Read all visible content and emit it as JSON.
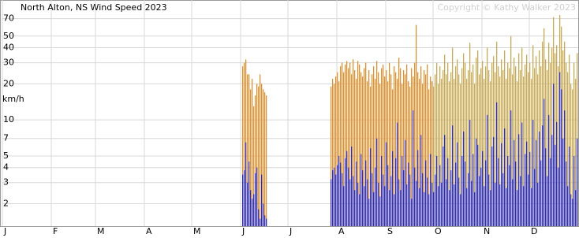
{
  "chart_data": {
    "type": "bar",
    "title": "North Alton, NS Wind Speed 2023",
    "copyright": "Copyright © Kathy Walker 2023",
    "y_label": "km/h",
    "log_scale": true,
    "grid": true,
    "xlim": [
      0,
      365
    ],
    "ylim": [
      1.3,
      100
    ],
    "xticks": [
      {
        "value": 0,
        "label": "J"
      },
      {
        "value": 31,
        "label": "F"
      },
      {
        "value": 59,
        "label": "M"
      },
      {
        "value": 90,
        "label": "A"
      },
      {
        "value": 120,
        "label": "M"
      },
      {
        "value": 151,
        "label": "J"
      },
      {
        "value": 181,
        "label": "J"
      },
      {
        "value": 212,
        "label": "A"
      },
      {
        "value": 243,
        "label": "S"
      },
      {
        "value": 273,
        "label": "O"
      },
      {
        "value": 304,
        "label": "N"
      },
      {
        "value": 334,
        "label": "D"
      }
    ],
    "yticks": [
      2,
      3,
      4,
      5,
      7,
      10,
      20,
      30,
      40,
      50,
      70
    ],
    "series": [
      {
        "color": "#e0902e",
        "x": [
          152,
          153,
          154,
          155,
          156,
          157,
          158,
          159,
          160,
          161,
          162,
          163,
          164,
          165,
          166,
          167,
          208,
          209,
          210,
          211,
          212,
          213,
          214,
          215,
          216,
          217,
          218,
          219,
          220,
          221,
          222,
          223,
          224,
          225,
          226,
          227,
          228,
          229,
          230,
          231,
          232,
          233,
          234,
          235,
          236,
          237,
          238,
          239,
          240,
          241,
          242,
          243,
          244,
          245,
          246,
          247,
          248,
          249,
          250,
          251,
          252,
          253,
          254,
          255,
          256,
          257,
          258,
          259,
          260,
          261,
          262,
          263,
          264,
          265,
          266,
          267,
          268,
          269,
          270,
          271,
          272
        ],
        "values": [
          28,
          30,
          32,
          24,
          24,
          18,
          22,
          13,
          16,
          20,
          19,
          24,
          20,
          18,
          17,
          16,
          19,
          22,
          20,
          23,
          25,
          21,
          28,
          30,
          25,
          29,
          31,
          27,
          30,
          24,
          32,
          26,
          22,
          31,
          29,
          25,
          23,
          27,
          30,
          21,
          26,
          19,
          24,
          28,
          22,
          31,
          25,
          20,
          27,
          29,
          23,
          26,
          21,
          30,
          24,
          18,
          28,
          25,
          22,
          33,
          27,
          20,
          26,
          24,
          29,
          21,
          19,
          27,
          23,
          30,
          62,
          25,
          22,
          28,
          20,
          26,
          24,
          29,
          18,
          23,
          21
        ]
      },
      {
        "color": "#c9ab55",
        "x": [
          273,
          274,
          275,
          276,
          277,
          278,
          279,
          280,
          281,
          282,
          283,
          284,
          285,
          286,
          287,
          288,
          289,
          290,
          291,
          292,
          293,
          294,
          295,
          296,
          297,
          298,
          299,
          300,
          301,
          302,
          303,
          304,
          305,
          306,
          307,
          308,
          309,
          310,
          311,
          312,
          313,
          314,
          315,
          316,
          317,
          318,
          319,
          320,
          321,
          322,
          323,
          324,
          325,
          326,
          327,
          328,
          329,
          330,
          331,
          332,
          333,
          334,
          335,
          336,
          337,
          338,
          339,
          340,
          341,
          342,
          343,
          344,
          345,
          346,
          347,
          348,
          349,
          350,
          351,
          352,
          353,
          354,
          355,
          356,
          357,
          358,
          359,
          360,
          361,
          362,
          363,
          364
        ],
        "values": [
          19,
          24,
          30,
          20,
          28,
          22,
          26,
          35,
          24,
          30,
          21,
          25,
          40,
          22,
          28,
          32,
          24,
          20,
          27,
          36,
          30,
          22,
          26,
          44,
          25,
          29,
          20,
          33,
          38,
          24,
          27,
          31,
          22,
          28,
          40,
          26,
          21,
          30,
          34,
          25,
          45,
          28,
          23,
          32,
          26,
          38,
          22,
          30,
          27,
          50,
          24,
          33,
          28,
          21,
          36,
          26,
          40,
          23,
          29,
          35,
          25,
          30,
          22,
          42,
          27,
          34,
          24,
          38,
          28,
          45,
          58,
          32,
          26,
          44,
          30,
          40,
          72,
          36,
          42,
          28,
          75,
          60,
          38,
          45,
          30,
          25,
          35,
          20,
          18,
          30,
          22,
          36
        ]
      },
      {
        "color": "#2b2bc0",
        "x": [
          152,
          153,
          154,
          155,
          156,
          157,
          158,
          159,
          160,
          161,
          162,
          163,
          164,
          165,
          166,
          167,
          208,
          209,
          210,
          211,
          212,
          213,
          214,
          215,
          216,
          217,
          218,
          219,
          220,
          221,
          222,
          223,
          224,
          225,
          226,
          227,
          228,
          229,
          230,
          231,
          232,
          233,
          234,
          235,
          236,
          237,
          238,
          239,
          240,
          241,
          242,
          243,
          244,
          245,
          246,
          247,
          248,
          249,
          250,
          251,
          252,
          253,
          254,
          255,
          256,
          257,
          258,
          259,
          260,
          261,
          262,
          263,
          264,
          265,
          266,
          267,
          268,
          269,
          270,
          271,
          272,
          273,
          274,
          275,
          276,
          277,
          278,
          279,
          280,
          281,
          282,
          283,
          284,
          285,
          286,
          287,
          288,
          289,
          290,
          291,
          292,
          293,
          294,
          295,
          296,
          297,
          298,
          299,
          300,
          301,
          302,
          303,
          304,
          305,
          306,
          307,
          308,
          309,
          310,
          311,
          312,
          313,
          314,
          315,
          316,
          317,
          318,
          319,
          320,
          321,
          322,
          323,
          324,
          325,
          326,
          327,
          328,
          329,
          330,
          331,
          332,
          333,
          334,
          335,
          336,
          337,
          338,
          339,
          340,
          341,
          342,
          343,
          344,
          345,
          346,
          347,
          348,
          349,
          350,
          351,
          352,
          353,
          354,
          355,
          356,
          357,
          358,
          359,
          360,
          361,
          362,
          363,
          364
        ],
        "values": [
          3.5,
          3.8,
          6.5,
          3.0,
          4.5,
          2.6,
          2.2,
          2.4,
          3.6,
          4.0,
          1.8,
          1.5,
          3.5,
          2.0,
          1.6,
          1.5,
          3.2,
          3.8,
          4.0,
          3.5,
          4.2,
          5.0,
          4.4,
          3.6,
          2.8,
          4.8,
          5.5,
          4.0,
          3.2,
          6.0,
          3.4,
          2.6,
          4.5,
          3.0,
          2.4,
          5.2,
          3.8,
          2.8,
          4.6,
          3.2,
          2.2,
          5.8,
          3.6,
          2.5,
          4.0,
          7.0,
          3.0,
          2.3,
          5.0,
          3.5,
          2.8,
          6.5,
          4.2,
          2.6,
          3.4,
          5.5,
          2.4,
          4.8,
          9.5,
          3.2,
          2.6,
          5.0,
          3.8,
          6.8,
          2.9,
          4.4,
          3.5,
          2.2,
          12,
          4.0,
          3.1,
          5.6,
          2.7,
          7.5,
          3.6,
          2.5,
          4.6,
          3.3,
          2.4,
          5.2,
          3.0,
          2.5,
          3.5,
          5.0,
          2.8,
          4.2,
          3.0,
          6.0,
          7.5,
          3.2,
          4.8,
          2.6,
          3.8,
          9.0,
          2.9,
          4.4,
          6.5,
          3.3,
          2.4,
          5.0,
          8.0,
          4.5,
          2.7,
          3.6,
          10,
          3.1,
          5.2,
          2.5,
          7.0,
          6.2,
          3.4,
          4.0,
          5.5,
          2.8,
          4.6,
          11,
          3.5,
          2.6,
          6.0,
          7.2,
          3.0,
          14,
          4.8,
          2.9,
          6.4,
          3.6,
          8.5,
          2.7,
          5.0,
          4.2,
          12,
          3.2,
          6.8,
          4.5,
          2.6,
          7.6,
          3.4,
          9.5,
          2.8,
          5.2,
          6.6,
          3.5,
          5.4,
          2.7,
          10,
          3.9,
          6.8,
          3.0,
          8.0,
          4.6,
          9.0,
          15,
          5.8,
          3.4,
          11,
          4.8,
          7.5,
          20,
          6.2,
          9.6,
          4.0,
          25,
          18,
          7.0,
          12,
          4.5,
          2.8,
          6.0,
          2.4,
          2.2,
          5.0,
          2.6,
          7.0
        ]
      }
    ]
  }
}
